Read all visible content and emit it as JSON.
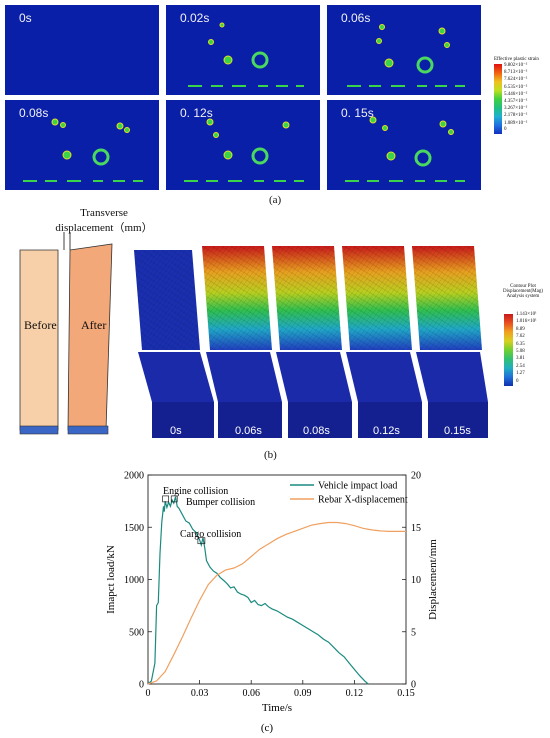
{
  "panel_a": {
    "labels": [
      "0s",
      "0.02s",
      "0.06s",
      "0.08s",
      "0. 12s",
      "0. 15s"
    ],
    "legend": {
      "title": "Effective plastic strain",
      "ticks": [
        "9.802×10⁻²",
        "8.713×10⁻²",
        "7.624×10⁻²",
        "6.535×10⁻²",
        "5.446×10⁻²",
        "4.357×10⁻²",
        "3.267×10⁻²",
        "2.178×10⁻²",
        "1.089×10⁻²",
        "0"
      ]
    },
    "caption": "(a)"
  },
  "panel_b": {
    "transverse_label_1": "Transverse",
    "transverse_label_2": "displacement（mm）",
    "before_label": "Before",
    "after_label": "After",
    "time_labels": [
      "0s",
      "0.06s",
      "0.08s",
      "0.12s",
      "0.15s"
    ],
    "legend": {
      "title_1": "Contour Plot",
      "title_2": "Displacement(Mag)",
      "title_3": "Analysis system",
      "ticks": [
        "1.143×10¹",
        "1.016×10¹",
        "8.89",
        "7.62",
        "6.35",
        "5.08",
        "3.81",
        "2.54",
        "1.27",
        "0"
      ]
    },
    "caption": "(b)"
  },
  "chart_data": {
    "type": "line",
    "xlabel": "Time/s",
    "ylabel_left": "Imapct load/kN",
    "ylabel_right": "Displacement/mm",
    "xlim": [
      0,
      0.15
    ],
    "ylim_left": [
      0,
      2000
    ],
    "ylim_right": [
      0,
      20
    ],
    "xticks": [
      "0",
      "0.03",
      "0.06",
      "0.09",
      "0.12",
      "0.15"
    ],
    "yticks_left": [
      "0",
      "500",
      "1000",
      "1500",
      "2000"
    ],
    "yticks_right": [
      "0",
      "5",
      "10",
      "15",
      "20"
    ],
    "legend_position": "top-right",
    "series": [
      {
        "name": "Vehicle impact load",
        "axis": "left",
        "color": "#1a8a80",
        "points": [
          [
            0,
            0
          ],
          [
            0.002,
            30
          ],
          [
            0.004,
            200
          ],
          [
            0.005,
            750
          ],
          [
            0.006,
            780
          ],
          [
            0.007,
            1250
          ],
          [
            0.008,
            1550
          ],
          [
            0.009,
            1700
          ],
          [
            0.0095,
            1650
          ],
          [
            0.01,
            1750
          ],
          [
            0.011,
            1690
          ],
          [
            0.012,
            1740
          ],
          [
            0.013,
            1700
          ],
          [
            0.014,
            1760
          ],
          [
            0.015,
            1730
          ],
          [
            0.016,
            1790
          ],
          [
            0.017,
            1700
          ],
          [
            0.018,
            1680
          ],
          [
            0.02,
            1620
          ],
          [
            0.022,
            1560
          ],
          [
            0.024,
            1540
          ],
          [
            0.026,
            1480
          ],
          [
            0.028,
            1450
          ],
          [
            0.03,
            1380
          ],
          [
            0.031,
            1330
          ],
          [
            0.032,
            1400
          ],
          [
            0.033,
            1300
          ],
          [
            0.034,
            1180
          ],
          [
            0.036,
            1120
          ],
          [
            0.038,
            1080
          ],
          [
            0.04,
            1060
          ],
          [
            0.042,
            1020
          ],
          [
            0.044,
            990
          ],
          [
            0.046,
            960
          ],
          [
            0.048,
            920
          ],
          [
            0.05,
            930
          ],
          [
            0.052,
            880
          ],
          [
            0.054,
            860
          ],
          [
            0.056,
            850
          ],
          [
            0.058,
            830
          ],
          [
            0.06,
            780
          ],
          [
            0.062,
            800
          ],
          [
            0.064,
            760
          ],
          [
            0.066,
            750
          ],
          [
            0.068,
            770
          ],
          [
            0.07,
            740
          ],
          [
            0.072,
            720
          ],
          [
            0.075,
            700
          ],
          [
            0.078,
            670
          ],
          [
            0.081,
            640
          ],
          [
            0.084,
            620
          ],
          [
            0.087,
            590
          ],
          [
            0.09,
            560
          ],
          [
            0.093,
            530
          ],
          [
            0.096,
            500
          ],
          [
            0.099,
            470
          ],
          [
            0.102,
            430
          ],
          [
            0.105,
            400
          ],
          [
            0.108,
            350
          ],
          [
            0.111,
            300
          ],
          [
            0.114,
            260
          ],
          [
            0.117,
            200
          ],
          [
            0.12,
            140
          ],
          [
            0.123,
            80
          ],
          [
            0.126,
            30
          ],
          [
            0.128,
            0
          ]
        ]
      },
      {
        "name": "Rebar X-displacement",
        "axis": "right",
        "color": "#f0a060",
        "points": [
          [
            0,
            0
          ],
          [
            0.005,
            0.3
          ],
          [
            0.01,
            1.2
          ],
          [
            0.015,
            2.8
          ],
          [
            0.02,
            4.5
          ],
          [
            0.025,
            6.3
          ],
          [
            0.03,
            8
          ],
          [
            0.035,
            9.5
          ],
          [
            0.04,
            10.4
          ],
          [
            0.045,
            10.9
          ],
          [
            0.05,
            11.1
          ],
          [
            0.055,
            11.5
          ],
          [
            0.06,
            12.2
          ],
          [
            0.065,
            12.9
          ],
          [
            0.07,
            13.4
          ],
          [
            0.075,
            13.9
          ],
          [
            0.08,
            14.3
          ],
          [
            0.085,
            14.6
          ],
          [
            0.09,
            14.9
          ],
          [
            0.095,
            15.2
          ],
          [
            0.1,
            15.35
          ],
          [
            0.105,
            15.45
          ],
          [
            0.11,
            15.45
          ],
          [
            0.115,
            15.35
          ],
          [
            0.12,
            15.15
          ],
          [
            0.125,
            14.9
          ],
          [
            0.13,
            14.75
          ],
          [
            0.135,
            14.65
          ],
          [
            0.14,
            14.6
          ],
          [
            0.145,
            14.6
          ],
          [
            0.15,
            14.6
          ]
        ]
      }
    ],
    "annotations": [
      "Engine collision",
      "Bumper collision",
      "Cargo collision"
    ],
    "caption": "(c)"
  }
}
